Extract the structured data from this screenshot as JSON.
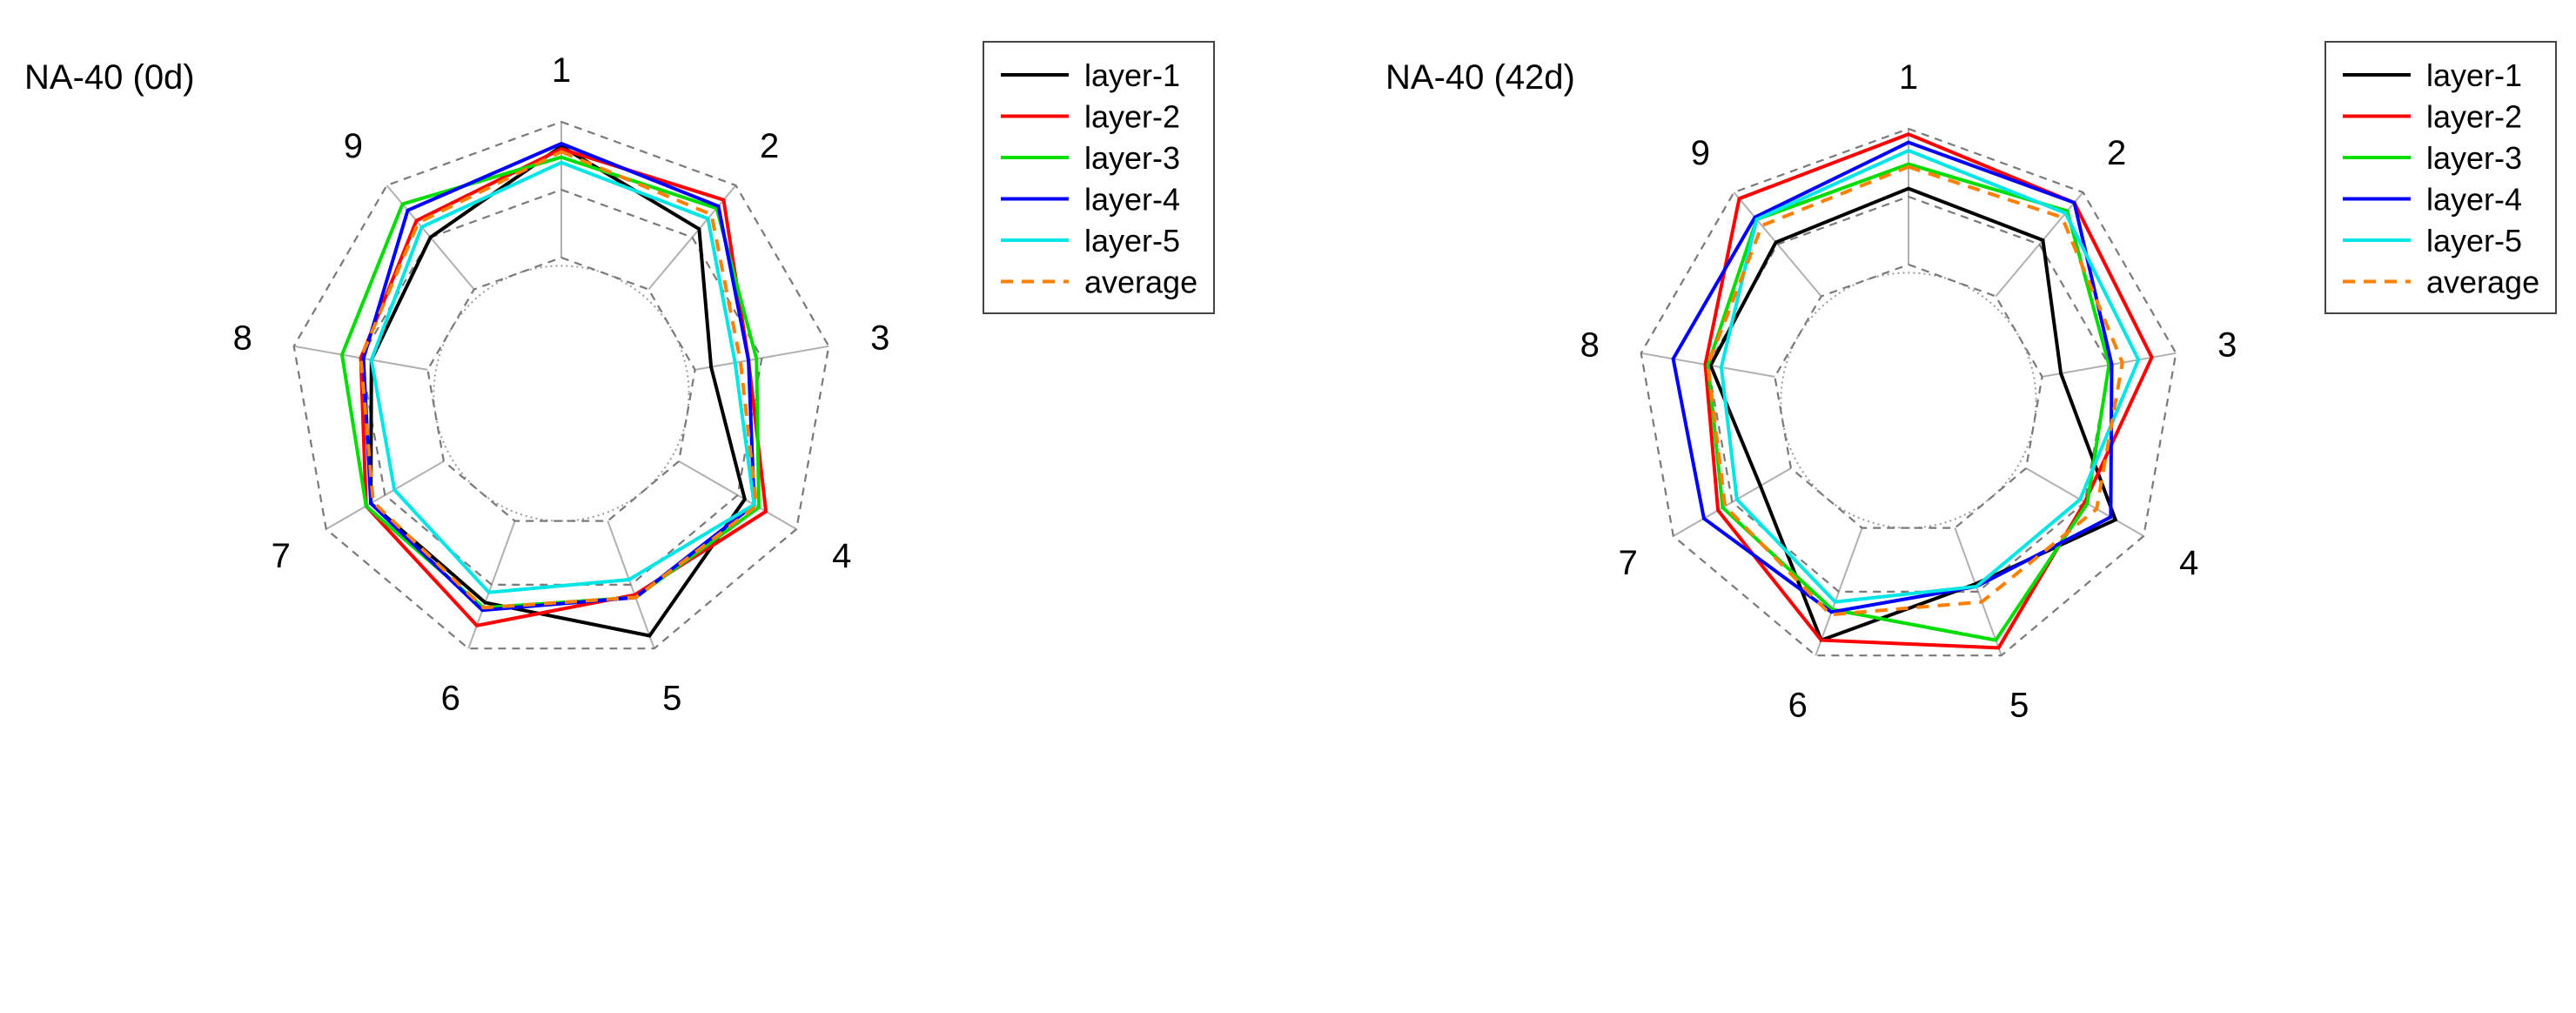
{
  "chart_data": [
    {
      "type": "radar",
      "title": "NA-40 (0d)",
      "axes": [
        "1",
        "2",
        "3",
        "4",
        "5",
        "6",
        "7",
        "8",
        "9"
      ],
      "rlim": [
        0,
        1
      ],
      "grid_levels": [
        0.5,
        0.75,
        1.0
      ],
      "inner_ring_dotted": true,
      "legend_position": "top-right",
      "series": [
        {
          "name": "layer-1",
          "color": "#000000",
          "dash": false,
          "values": [
            0.91,
            0.79,
            0.56,
            0.78,
            0.95,
            0.82,
            0.81,
            0.71,
            0.75
          ]
        },
        {
          "name": "layer-2",
          "color": "#ff0000",
          "dash": false,
          "values": [
            0.9,
            0.93,
            0.7,
            0.87,
            0.79,
            0.91,
            0.83,
            0.75,
            0.83
          ]
        },
        {
          "name": "layer-3",
          "color": "#00dd00",
          "dash": false,
          "values": [
            0.87,
            0.89,
            0.73,
            0.84,
            0.8,
            0.84,
            0.83,
            0.82,
            0.91
          ]
        },
        {
          "name": "layer-4",
          "color": "#0000ff",
          "dash": false,
          "values": [
            0.92,
            0.9,
            0.7,
            0.82,
            0.8,
            0.85,
            0.81,
            0.74,
            0.88
          ]
        },
        {
          "name": "layer-5",
          "color": "#00e5e5",
          "dash": false,
          "values": [
            0.85,
            0.84,
            0.65,
            0.82,
            0.73,
            0.78,
            0.71,
            0.71,
            0.8
          ]
        },
        {
          "name": "average",
          "color": "#ff8000",
          "dash": true,
          "values": [
            0.89,
            0.86,
            0.67,
            0.83,
            0.8,
            0.84,
            0.8,
            0.75,
            0.82
          ]
        }
      ]
    },
    {
      "type": "radar",
      "title": "NA-40 (42d)",
      "axes": [
        "1",
        "2",
        "3",
        "4",
        "5",
        "6",
        "7",
        "8",
        "9"
      ],
      "rlim": [
        0,
        1
      ],
      "grid_levels": [
        0.5,
        0.75,
        1.0
      ],
      "inner_ring_dotted": true,
      "legend_position": "top-right",
      "series": [
        {
          "name": "layer-1",
          "color": "#000000",
          "dash": false,
          "values": [
            0.78,
            0.77,
            0.57,
            0.88,
            0.72,
            0.94,
            0.63,
            0.74,
            0.76
          ]
        },
        {
          "name": "layer-2",
          "color": "#ff0000",
          "dash": false,
          "values": [
            0.98,
            0.95,
            0.91,
            0.75,
            0.97,
            0.94,
            0.81,
            0.76,
            0.97
          ]
        },
        {
          "name": "layer-3",
          "color": "#00dd00",
          "dash": false,
          "values": [
            0.87,
            0.91,
            0.75,
            0.76,
            0.94,
            0.82,
            0.79,
            0.75,
            0.87
          ]
        },
        {
          "name": "layer-4",
          "color": "#0000ff",
          "dash": false,
          "values": [
            0.95,
            0.95,
            0.76,
            0.86,
            0.73,
            0.83,
            0.87,
            0.88,
            0.88
          ]
        },
        {
          "name": "layer-5",
          "color": "#00e5e5",
          "dash": false,
          "values": [
            0.92,
            0.9,
            0.86,
            0.73,
            0.73,
            0.79,
            0.73,
            0.7,
            0.87
          ]
        },
        {
          "name": "average",
          "color": "#ff8000",
          "dash": true,
          "values": [
            0.86,
            0.88,
            0.8,
            0.8,
            0.79,
            0.84,
            0.78,
            0.75,
            0.84
          ]
        }
      ]
    }
  ]
}
